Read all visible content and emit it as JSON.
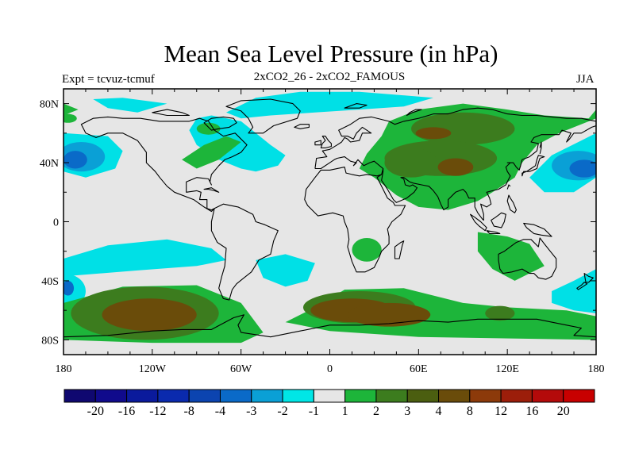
{
  "title": "Mean Sea Level Pressure (in hPa)",
  "experiment": "Expt = tcvuz-tcmuf",
  "comparison": "2xCO2_26 - 2xCO2_FAMOUS",
  "season": "JJA",
  "map": {
    "projection": "cylindrical equidistant",
    "lon_range": [
      -180,
      180
    ],
    "lat_range": [
      -90,
      90
    ],
    "lat_tick_labels": [
      {
        "lat": 80,
        "label": "80N"
      },
      {
        "lat": 40,
        "label": "40N"
      },
      {
        "lat": 0,
        "label": "0"
      },
      {
        "lat": -40,
        "label": "40S"
      },
      {
        "lat": -80,
        "label": "80S"
      }
    ],
    "lon_tick_labels": [
      {
        "lon": -180,
        "label": "180"
      },
      {
        "lon": -120,
        "label": "120W"
      },
      {
        "lon": -60,
        "label": "60W"
      },
      {
        "lon": 0,
        "label": "0"
      },
      {
        "lon": 60,
        "label": "60E"
      },
      {
        "lon": 120,
        "label": "120E"
      },
      {
        "lon": 180,
        "label": "180"
      }
    ],
    "background_color": "#e6e6e6"
  },
  "colorbar": {
    "labels": [
      "-20",
      "-16",
      "-12",
      "-8",
      "-4",
      "-3",
      "-2",
      "-1",
      "1",
      "2",
      "3",
      "4",
      "8",
      "12",
      "16",
      "20"
    ],
    "colors": [
      "#0f0870",
      "#100a8c",
      "#0a1a9c",
      "#0a2aae",
      "#0c44b0",
      "#0a6ac8",
      "#0aa0d6",
      "#00e6e6",
      "#e6e6e6",
      "#1db53a",
      "#3c7c1e",
      "#4b5e10",
      "#6a4c0a",
      "#8c3a0a",
      "#9c1e0a",
      "#b40a0a",
      "#c80000"
    ]
  },
  "fields": {
    "colors": {
      "cyan": "#00e0e6",
      "blue_light": "#0aa0d6",
      "blue_mid": "#0a6ac8",
      "green": "#1db53a",
      "green_dark": "#3c7c1e",
      "brown": "#6a4c0a"
    }
  }
}
